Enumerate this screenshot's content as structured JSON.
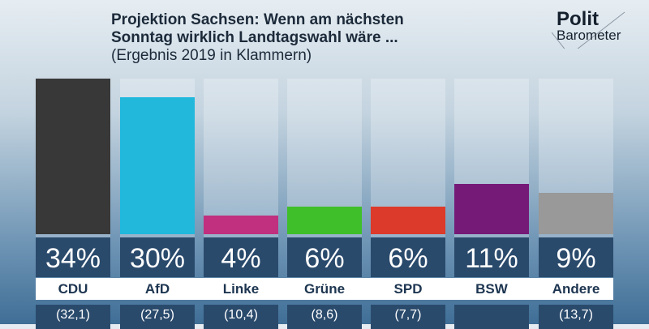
{
  "title_line1": "Projektion Sachsen: Wenn am nächsten",
  "title_line2": "Sonntag wirklich Landtagswahl wäre ...",
  "subtitle": "(Ergebnis 2019 in Klammern)",
  "logo": {
    "line1": "Polit",
    "line2": "Barometer"
  },
  "chart_data": {
    "type": "bar",
    "title": "Projektion Sachsen: Wenn am nächsten Sonntag wirklich Landtagswahl wäre ...",
    "subtitle": "(Ergebnis 2019 in Klammern)",
    "categories": [
      "CDU",
      "AfD",
      "Linke",
      "Grüne",
      "SPD",
      "BSW",
      "Andere"
    ],
    "values": [
      34,
      30,
      4,
      6,
      6,
      11,
      9
    ],
    "value_labels": [
      "34%",
      "30%",
      "4%",
      "6%",
      "6%",
      "11%",
      "9%"
    ],
    "previous_labels": [
      "(32,1)",
      "(27,5)",
      "(10,4)",
      "(8,6)",
      "(7,7)",
      "",
      "(13,7)"
    ],
    "colors": [
      "#383838",
      "#22b8dc",
      "#c0307e",
      "#3fbf2a",
      "#dc3a2a",
      "#761a78",
      "#999999"
    ],
    "unit": "%"
  }
}
